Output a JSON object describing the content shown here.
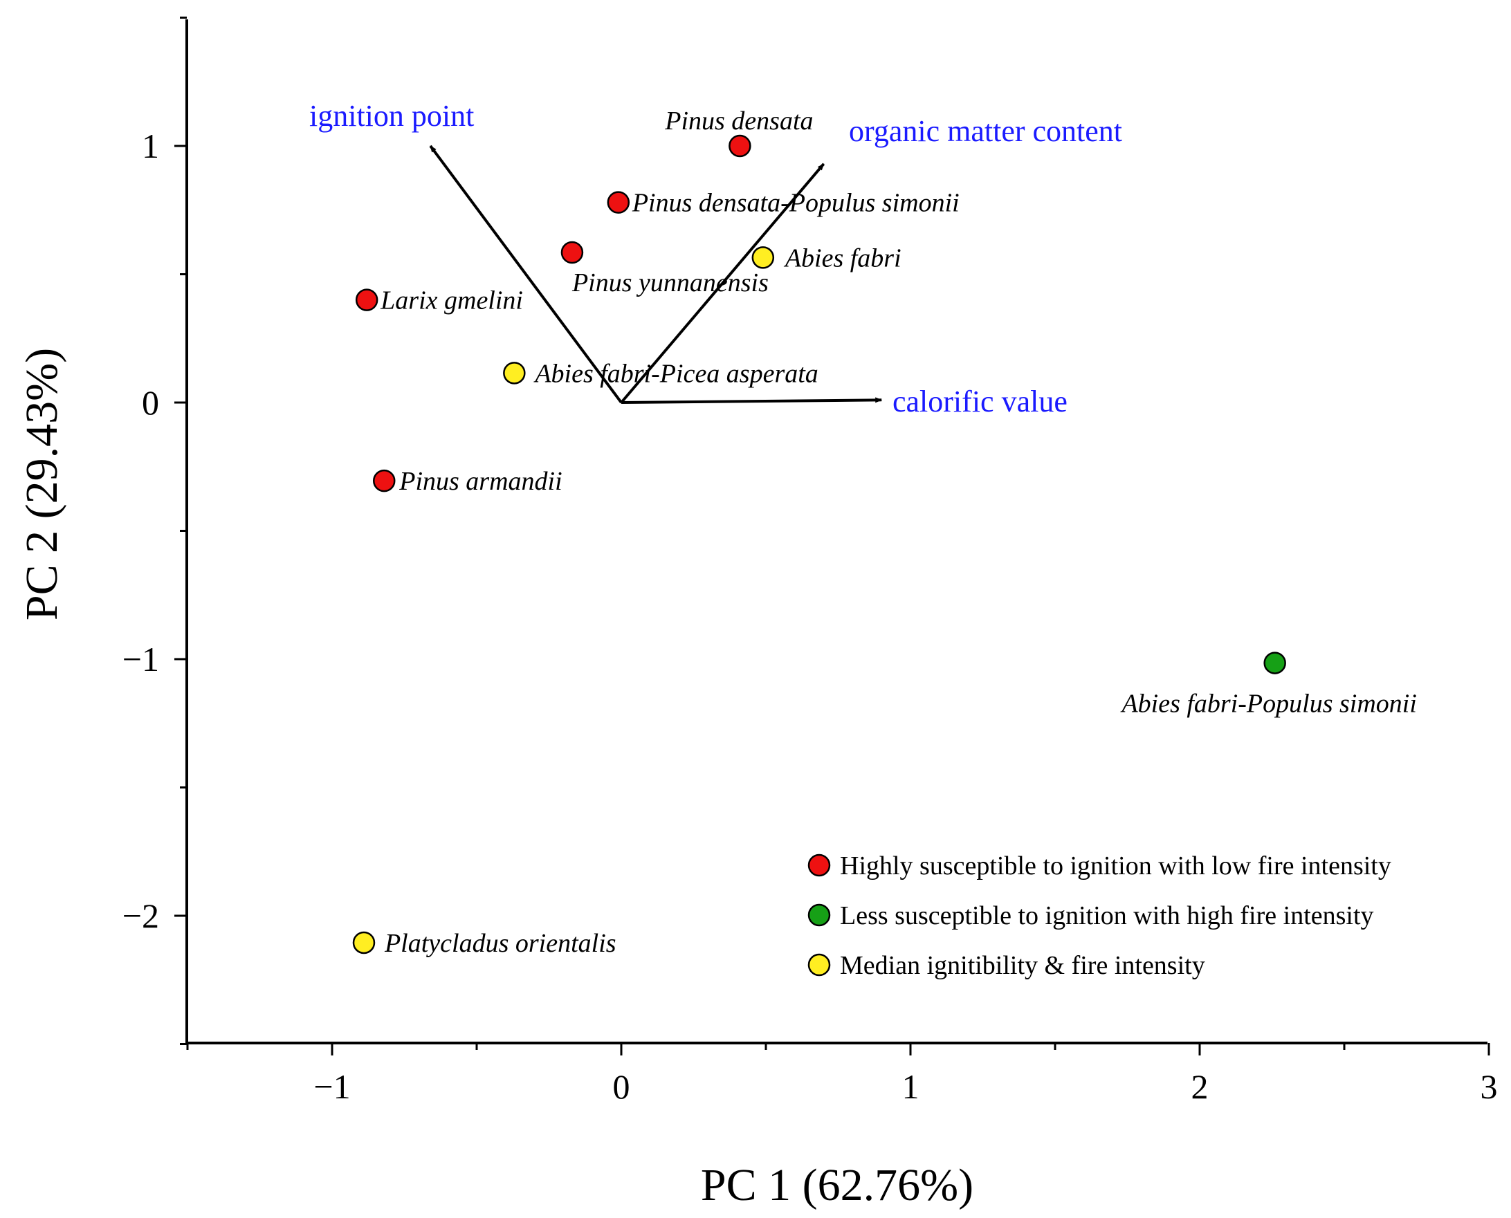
{
  "chart_data": {
    "type": "scatter",
    "title": "",
    "xlabel": "PC 1 (62.76%)",
    "ylabel": "PC 2 (29.43%)",
    "xlim": [
      -1.5,
      3.0
    ],
    "ylim": [
      -2.5,
      1.5
    ],
    "x_ticks": [
      -1,
      0,
      1,
      2,
      3
    ],
    "x_tick_labels": [
      "−1",
      "0",
      "1",
      "2",
      "3"
    ],
    "y_ticks": [
      1,
      0,
      -1,
      -2
    ],
    "y_tick_labels": [
      "1",
      "0",
      "−1",
      "−2"
    ],
    "groups": [
      {
        "name": "Highly susceptible to ignition with low fire intensity",
        "color": "#ee1111"
      },
      {
        "name": "Less susceptible to ignition with high fire intensity",
        "color": "#16a016"
      },
      {
        "name": "Median ignitibility & fire intensity",
        "color": "#ffee22"
      }
    ],
    "points": [
      {
        "label": "Pinus densata",
        "x": 0.41,
        "y": 1.0,
        "group": 0
      },
      {
        "label": "Pinus densata-Populus simonii",
        "x": -0.01,
        "y": 0.78,
        "group": 0
      },
      {
        "label": "Pinus yunnanensis",
        "x": -0.17,
        "y": 0.585,
        "group": 0
      },
      {
        "label": "Abies fabri",
        "x": 0.49,
        "y": 0.565,
        "group": 2
      },
      {
        "label": "Larix gmelini",
        "x": -0.88,
        "y": 0.4,
        "group": 0
      },
      {
        "label": "Abies fabri-Picea asperata",
        "x": -0.37,
        "y": 0.115,
        "group": 2
      },
      {
        "label": "Pinus armandii",
        "x": -0.82,
        "y": -0.305,
        "group": 0
      },
      {
        "label": "Abies fabri-Populus simonii",
        "x": 2.26,
        "y": -1.015,
        "group": 1
      },
      {
        "label": "Platycladus orientalis",
        "x": -0.89,
        "y": -2.105,
        "group": 2
      }
    ],
    "vectors": [
      {
        "label": "ignition point",
        "x": -0.66,
        "y": 1.0
      },
      {
        "label": "organic matter content",
        "x": 0.7,
        "y": 0.93
      },
      {
        "label": "calorific value",
        "x": 0.9,
        "y": 0.01
      }
    ],
    "legend_position": "bottom-right",
    "grid": false
  }
}
